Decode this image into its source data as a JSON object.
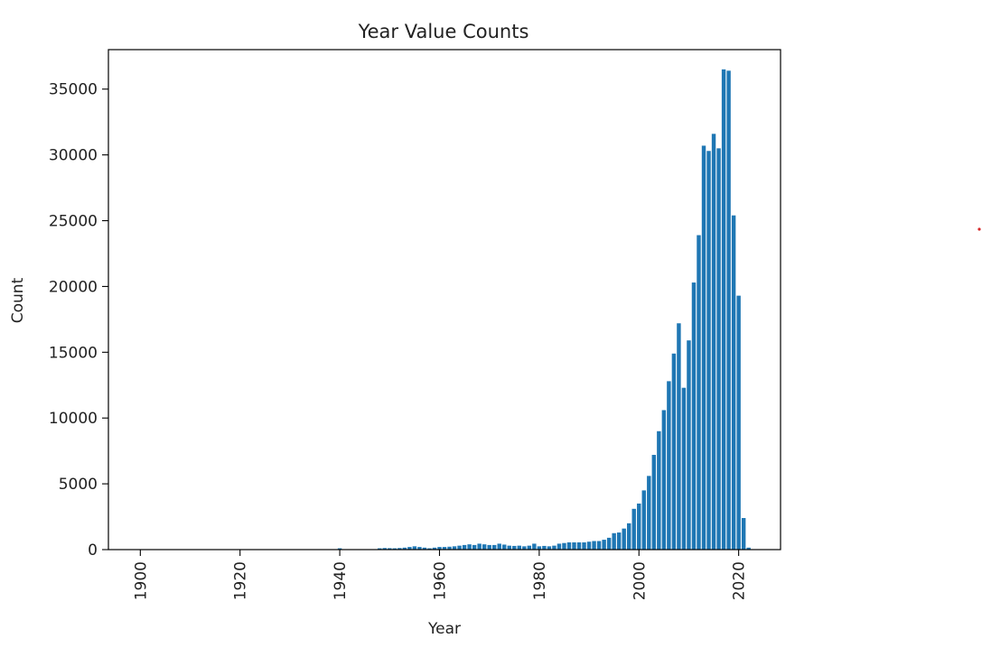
{
  "chart_data": {
    "type": "bar",
    "title": "Year Value Counts",
    "xlabel": "Year",
    "ylabel": "Count",
    "xlim": [
      1893.6,
      2028.4
    ],
    "ylim": [
      0,
      38000
    ],
    "xticks": [
      1900,
      1920,
      1940,
      1960,
      1980,
      2000,
      2020
    ],
    "yticks": [
      0,
      5000,
      10000,
      15000,
      20000,
      25000,
      30000,
      35000
    ],
    "grid": false,
    "color": "#1f77b4",
    "x": [
      1900,
      1901,
      1940,
      1948,
      1949,
      1950,
      1951,
      1952,
      1953,
      1954,
      1955,
      1956,
      1957,
      1958,
      1959,
      1960,
      1961,
      1962,
      1963,
      1964,
      1965,
      1966,
      1967,
      1968,
      1969,
      1970,
      1971,
      1972,
      1973,
      1974,
      1975,
      1976,
      1977,
      1978,
      1979,
      1980,
      1981,
      1982,
      1983,
      1984,
      1985,
      1986,
      1987,
      1988,
      1989,
      1990,
      1991,
      1992,
      1993,
      1994,
      1995,
      1996,
      1997,
      1998,
      1999,
      2000,
      2001,
      2002,
      2003,
      2004,
      2005,
      2006,
      2007,
      2008,
      2009,
      2010,
      2011,
      2012,
      2013,
      2014,
      2015,
      2016,
      2017,
      2018,
      2019,
      2020,
      2021,
      2022
    ],
    "values": [
      30,
      20,
      100,
      100,
      120,
      110,
      100,
      120,
      150,
      200,
      250,
      200,
      150,
      100,
      150,
      200,
      200,
      220,
      250,
      300,
      350,
      400,
      350,
      450,
      400,
      350,
      350,
      450,
      380,
      300,
      280,
      300,
      250,
      300,
      450,
      250,
      280,
      250,
      300,
      450,
      500,
      550,
      550,
      550,
      550,
      600,
      650,
      650,
      750,
      900,
      1250,
      1300,
      1600,
      2000,
      3100,
      3500,
      4500,
      5600,
      7200,
      9000,
      10600,
      12800,
      14900,
      17200,
      12300,
      15900,
      20300,
      23900,
      30700,
      30300,
      31600,
      30500,
      36500,
      36400,
      25400,
      19300,
      2400,
      150
    ]
  },
  "annotations": {
    "red_dot_color": "#d62728"
  }
}
